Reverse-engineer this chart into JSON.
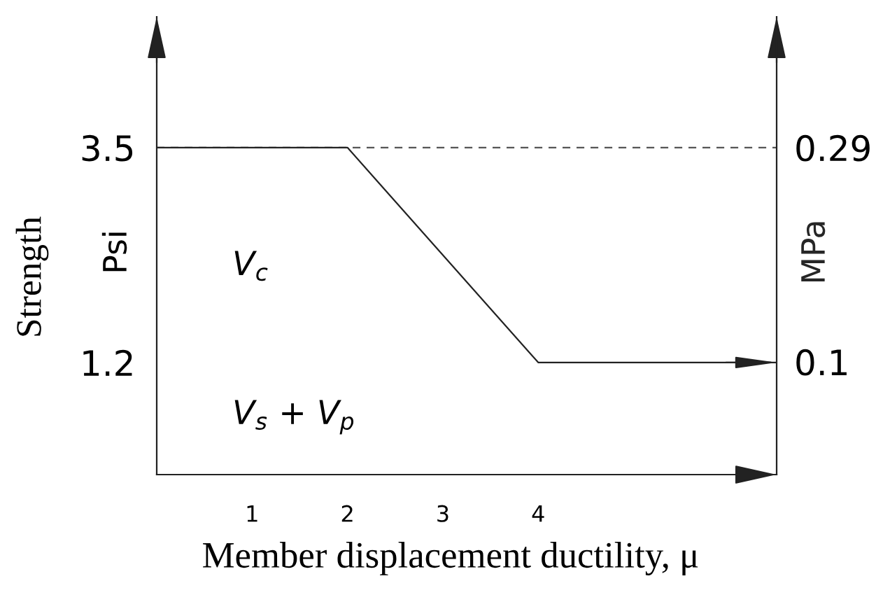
{
  "chart_data": {
    "type": "line",
    "xlabel": "Member displacement ductility, μ",
    "ylabel": "Psi",
    "y2label": "MPa",
    "annotations": [
      "Strength",
      "V$_{c}$",
      "V$_{s}$ + V$_{p}$"
    ],
    "series": [
      {
        "color": "#222222",
        "x": [
          0,
          2,
          4,
          6.5
        ],
        "values": [
          3.5,
          3.5,
          1.2,
          1.2
        ]
      }
    ],
    "xlim": [
      0,
      6.5
    ],
    "xticks": [
      1,
      2,
      3,
      4
    ],
    "ylim": [
      0,
      4.9
    ],
    "yticks": [
      1.2,
      3.5
    ],
    "y2lim": [
      0,
      0.406
    ],
    "y2ticks": [
      0.1,
      0.29
    ],
    "ref_lines": [
      {
        "axis": "y",
        "value": 3.5,
        "color": "#555555",
        "line_style": "dashed"
      }
    ],
    "line_style": "solid"
  }
}
